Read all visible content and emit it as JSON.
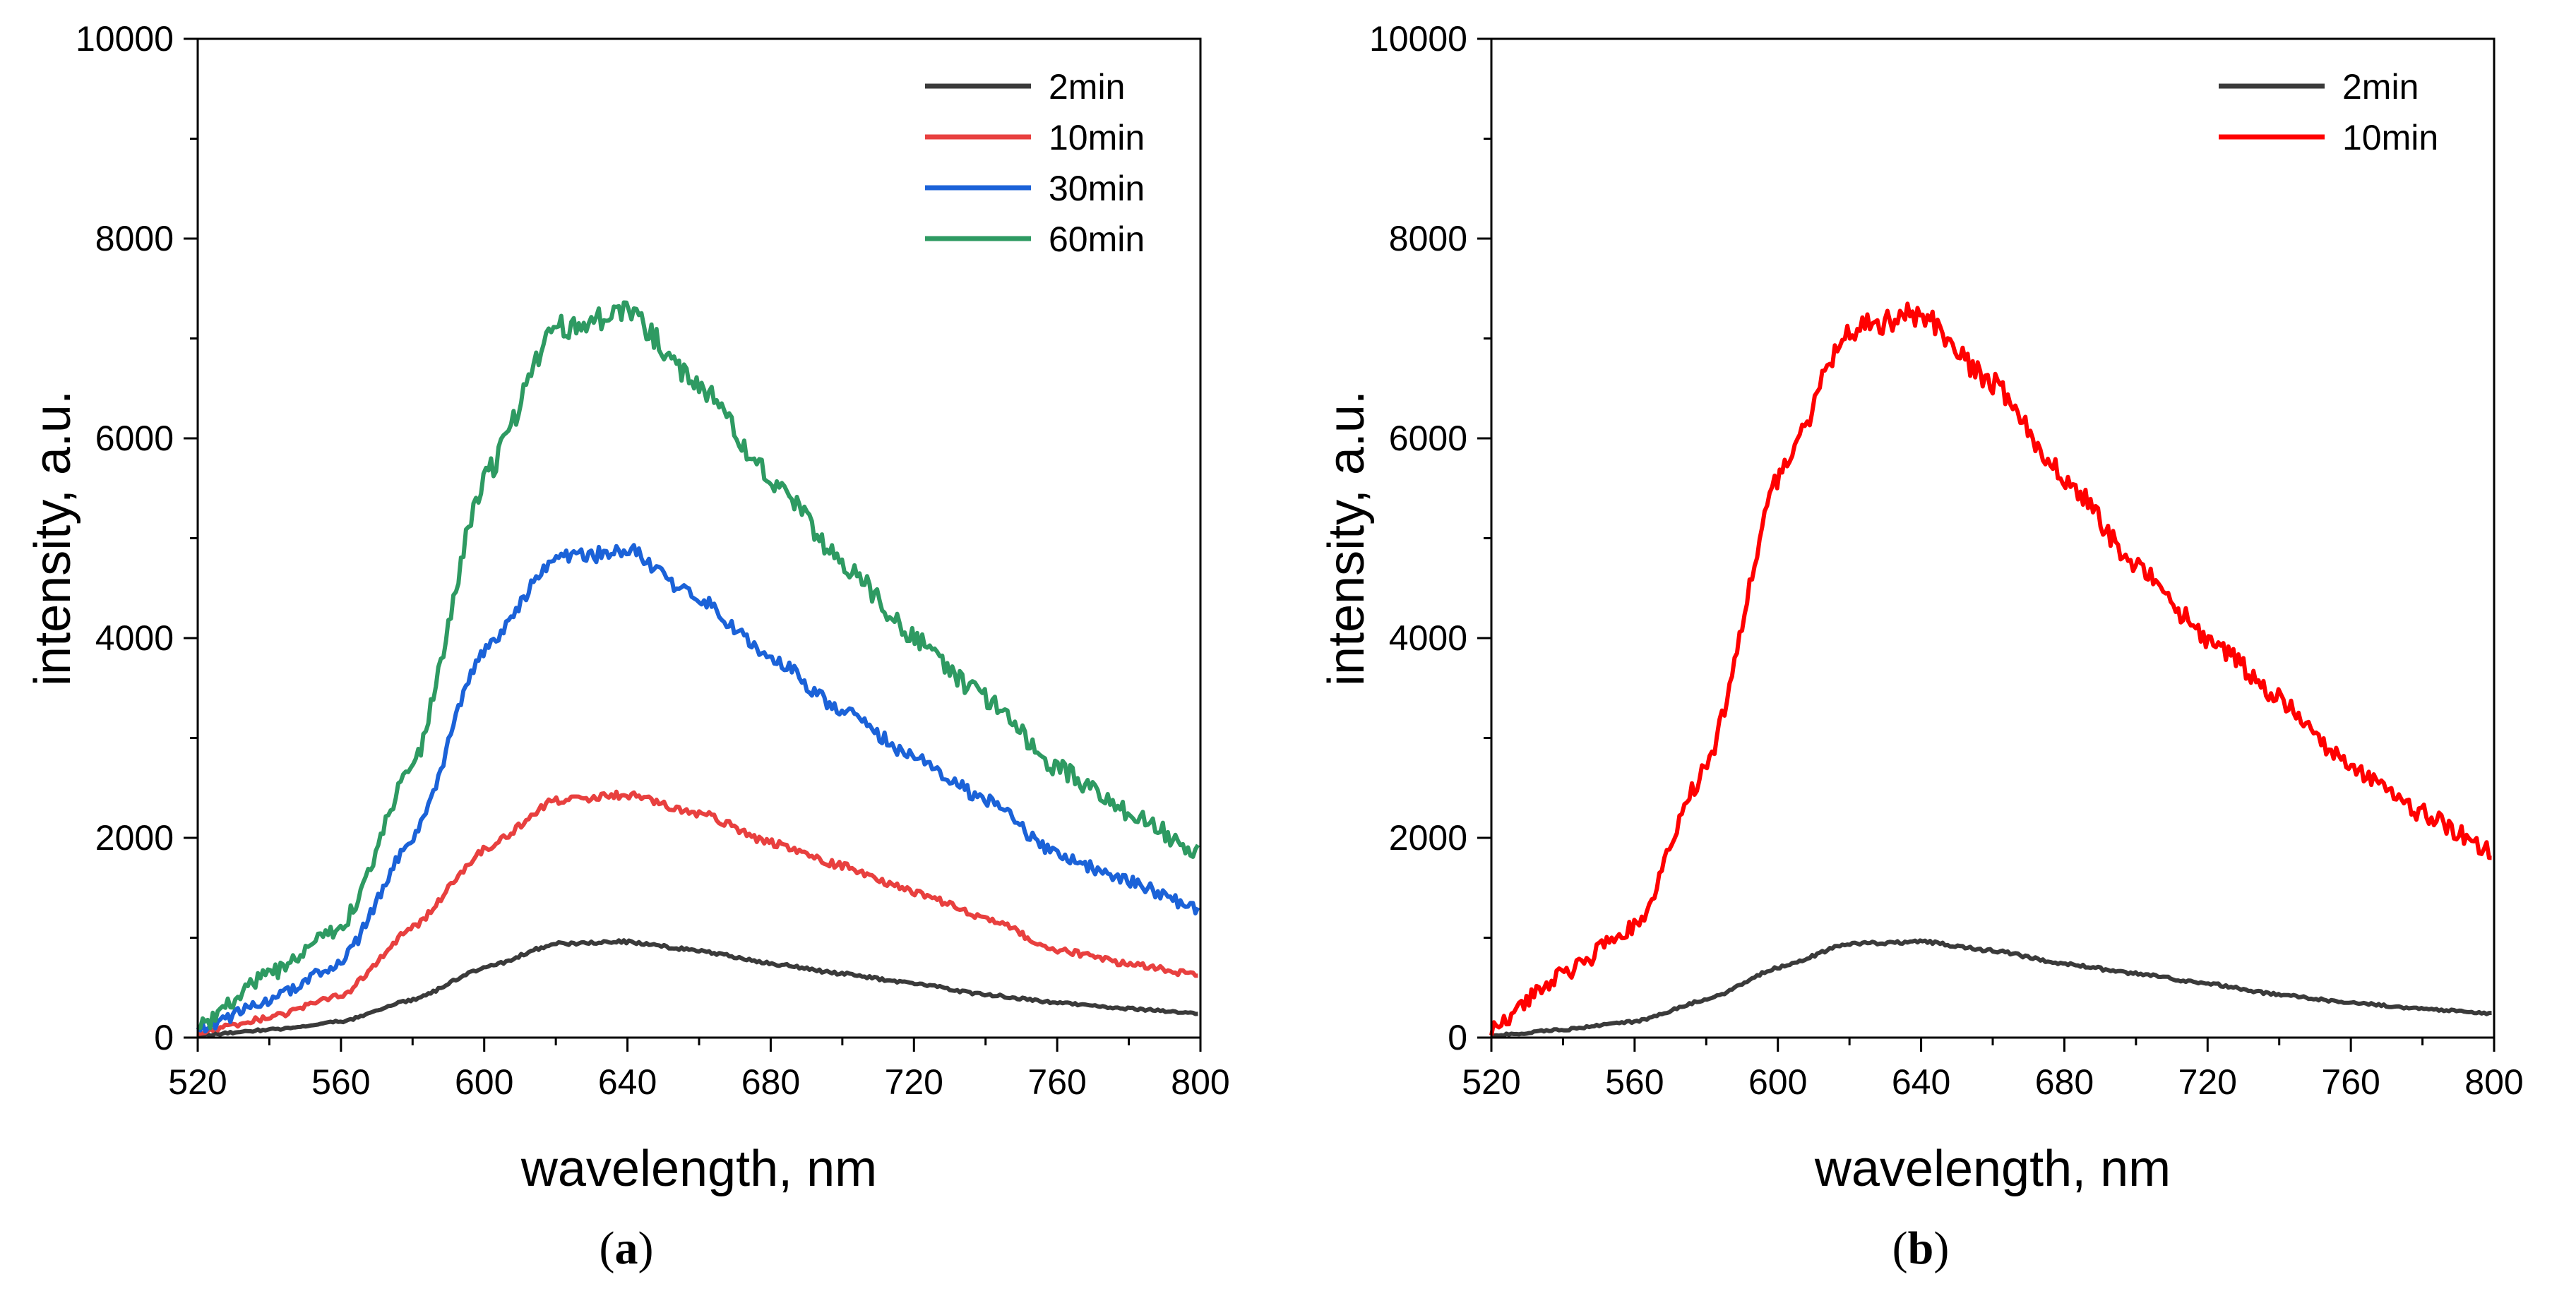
{
  "chart_data": [
    {
      "panel": "a",
      "type": "line",
      "xlabel": "wavelength, nm",
      "ylabel": "intensity, a.u.",
      "xlim": [
        520,
        800
      ],
      "ylim": [
        0,
        10000
      ],
      "xticks": [
        520,
        560,
        600,
        640,
        680,
        720,
        760,
        800
      ],
      "yticks": [
        0,
        2000,
        4000,
        6000,
        8000,
        10000
      ],
      "legend_position": "top-right",
      "series": [
        {
          "name": "2min",
          "color": "#3a3a3a",
          "x": [
            520,
            540,
            560,
            580,
            600,
            620,
            640,
            660,
            680,
            700,
            720,
            740,
            760,
            780,
            800
          ],
          "y": [
            20,
            80,
            160,
            380,
            700,
            940,
            960,
            870,
            740,
            640,
            540,
            430,
            350,
            290,
            240
          ]
        },
        {
          "name": "10min",
          "color": "#e8403f",
          "x": [
            520,
            540,
            560,
            580,
            600,
            620,
            640,
            660,
            680,
            700,
            720,
            740,
            760,
            780,
            800
          ],
          "y": [
            50,
            200,
            420,
            1100,
            1880,
            2380,
            2430,
            2250,
            1950,
            1720,
            1460,
            1200,
            880,
            740,
            620
          ]
        },
        {
          "name": "30min",
          "color": "#1b62d8",
          "x": [
            520,
            540,
            560,
            580,
            600,
            620,
            640,
            660,
            680,
            700,
            720,
            740,
            760,
            780,
            800
          ],
          "y": [
            70,
            380,
            750,
            2000,
            3900,
            4790,
            4880,
            4400,
            3800,
            3280,
            2800,
            2380,
            1830,
            1560,
            1280
          ]
        },
        {
          "name": "60min",
          "color": "#2e9a62",
          "x": [
            520,
            540,
            560,
            580,
            600,
            620,
            640,
            660,
            680,
            700,
            720,
            740,
            760,
            780,
            800
          ],
          "y": [
            100,
            640,
            1100,
            2700,
            5600,
            7100,
            7250,
            6550,
            5600,
            4750,
            4000,
            3400,
            2700,
            2250,
            1850
          ]
        }
      ]
    },
    {
      "panel": "b",
      "type": "line",
      "xlabel": "wavelength, nm",
      "ylabel": "intensity, a.u.",
      "xlim": [
        520,
        800
      ],
      "ylim": [
        0,
        10000
      ],
      "xticks": [
        520,
        560,
        600,
        640,
        680,
        720,
        760,
        800
      ],
      "yticks": [
        0,
        2000,
        4000,
        6000,
        8000,
        10000
      ],
      "legend_position": "top-right",
      "series": [
        {
          "name": "2min",
          "color": "#3a3a3a",
          "x": [
            520,
            540,
            560,
            580,
            600,
            620,
            640,
            660,
            680,
            700,
            720,
            740,
            760,
            780,
            800
          ],
          "y": [
            20,
            80,
            160,
            380,
            700,
            940,
            960,
            870,
            740,
            640,
            540,
            430,
            350,
            290,
            240
          ]
        },
        {
          "name": "10min",
          "color": "#ff0000",
          "x": [
            520,
            540,
            560,
            580,
            600,
            620,
            640,
            660,
            680,
            700,
            720,
            740,
            760,
            780,
            800
          ],
          "y": [
            100,
            640,
            1100,
            2700,
            5600,
            7100,
            7250,
            6550,
            5600,
            4750,
            4000,
            3400,
            2700,
            2250,
            1850
          ]
        }
      ]
    }
  ],
  "panel_labels": [
    {
      "open": "(",
      "letter": "a",
      "close": ")"
    },
    {
      "open": "(",
      "letter": "b",
      "close": ")"
    }
  ]
}
